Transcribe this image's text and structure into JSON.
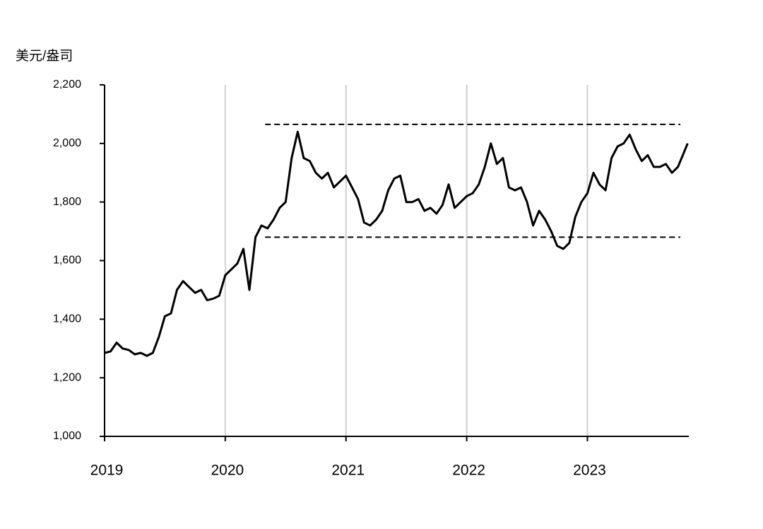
{
  "chart_data": {
    "type": "line",
    "y_label": "美元/盎司",
    "color": "#000000",
    "x": [
      2019.0,
      2019.05,
      2019.1,
      2019.15,
      2019.2,
      2019.25,
      2019.3,
      2019.35,
      2019.4,
      2019.45,
      2019.5,
      2019.55,
      2019.6,
      2019.65,
      2019.7,
      2019.75,
      2019.8,
      2019.85,
      2019.9,
      2019.95,
      2020.0,
      2020.05,
      2020.1,
      2020.15,
      2020.2,
      2020.25,
      2020.3,
      2020.35,
      2020.4,
      2020.45,
      2020.5,
      2020.55,
      2020.6,
      2020.65,
      2020.7,
      2020.75,
      2020.8,
      2020.85,
      2020.9,
      2020.95,
      2021.0,
      2021.05,
      2021.1,
      2021.15,
      2021.2,
      2021.25,
      2021.3,
      2021.35,
      2021.4,
      2021.45,
      2021.5,
      2021.55,
      2021.6,
      2021.65,
      2021.7,
      2021.75,
      2021.8,
      2021.85,
      2021.9,
      2021.95,
      2022.0,
      2022.05,
      2022.1,
      2022.15,
      2022.2,
      2022.25,
      2022.3,
      2022.35,
      2022.4,
      2022.45,
      2022.5,
      2022.55,
      2022.6,
      2022.65,
      2022.7,
      2022.75,
      2022.8,
      2022.85,
      2022.9,
      2022.95,
      2023.0,
      2023.05,
      2023.1,
      2023.15,
      2023.2,
      2023.25,
      2023.3,
      2023.35,
      2023.4,
      2023.45,
      2023.5,
      2023.55,
      2023.6,
      2023.65,
      2023.7,
      2023.75,
      2023.8,
      2023.83
    ],
    "values": [
      1285,
      1290,
      1320,
      1300,
      1295,
      1280,
      1285,
      1275,
      1285,
      1340,
      1410,
      1420,
      1500,
      1530,
      1510,
      1490,
      1500,
      1465,
      1470,
      1480,
      1550,
      1570,
      1590,
      1640,
      1500,
      1680,
      1720,
      1710,
      1740,
      1780,
      1800,
      1950,
      2040,
      1950,
      1940,
      1900,
      1880,
      1900,
      1850,
      1870,
      1890,
      1850,
      1810,
      1730,
      1720,
      1740,
      1770,
      1840,
      1880,
      1890,
      1800,
      1800,
      1810,
      1770,
      1780,
      1760,
      1790,
      1860,
      1780,
      1800,
      1820,
      1830,
      1860,
      1920,
      2000,
      1930,
      1950,
      1850,
      1840,
      1850,
      1800,
      1720,
      1770,
      1740,
      1700,
      1650,
      1640,
      1660,
      1750,
      1800,
      1830,
      1900,
      1860,
      1840,
      1950,
      1990,
      2000,
      2030,
      1980,
      1940,
      1960,
      1920,
      1920,
      1930,
      1900,
      1920,
      1970,
      2000
    ],
    "hlines": [
      {
        "y": 2065,
        "x": [
          2020.33,
          2023.77
        ]
      },
      {
        "y": 1680,
        "x": [
          2020.33,
          2023.77
        ]
      }
    ],
    "xlim": [
      2019,
      2023.84
    ],
    "xticks": [
      2019,
      2020,
      2021,
      2022,
      2023
    ],
    "ylim": [
      1000,
      2200
    ],
    "yticks": [
      {
        "value": 1000,
        "label": "1,000"
      },
      {
        "value": 1200,
        "label": "1,200"
      },
      {
        "value": 1400,
        "label": "1,400"
      },
      {
        "value": 1600,
        "label": "1,600"
      },
      {
        "value": 1800,
        "label": "1,800"
      },
      {
        "value": 2000,
        "label": "2,000"
      },
      {
        "value": 2200,
        "label": "2,200"
      }
    ],
    "grid": true
  }
}
